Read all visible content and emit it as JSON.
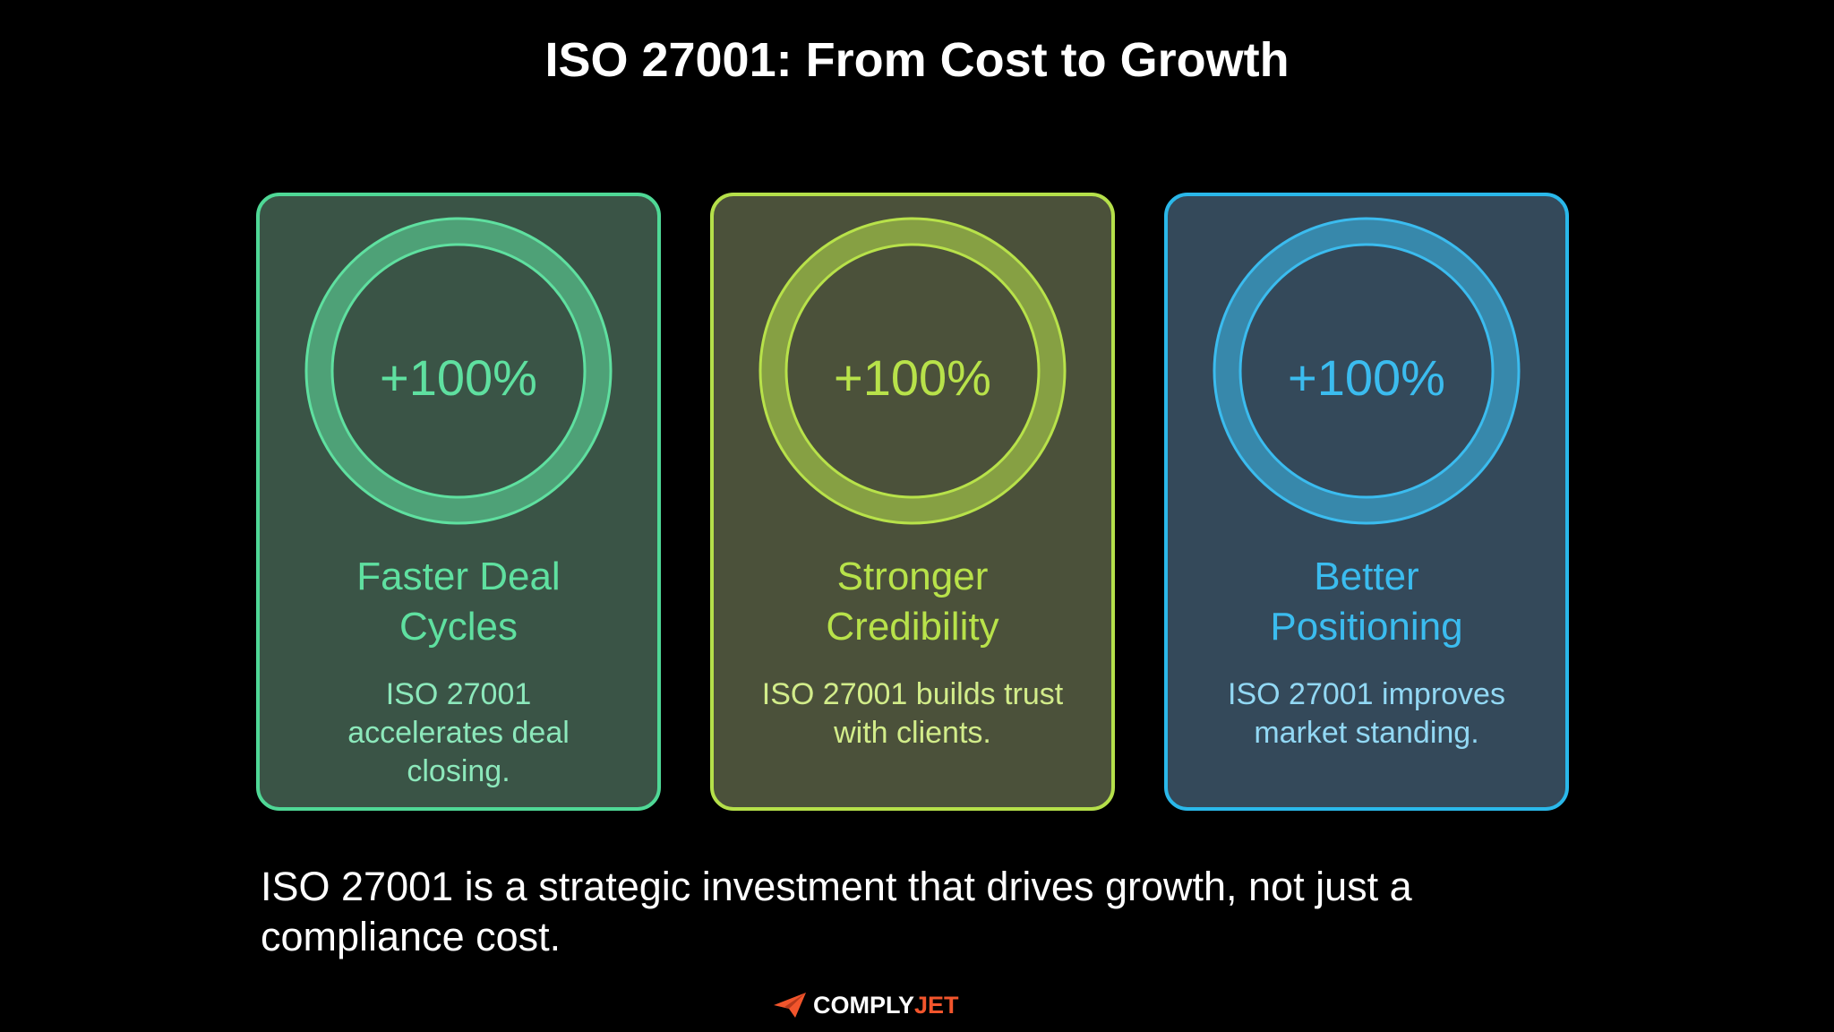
{
  "header": {
    "title": "ISO 27001: From Cost to Growth"
  },
  "cards": [
    {
      "value": "+100%",
      "heading": "Faster Deal Cycles",
      "text": "ISO 27001 accelerates deal closing."
    },
    {
      "value": "+100%",
      "heading": "Stronger Credibility",
      "text": "ISO 27001 builds trust with clients."
    },
    {
      "value": "+100%",
      "heading": "Better Positioning",
      "text": "ISO 27001 improves market standing."
    }
  ],
  "footer": {
    "text": "ISO 27001 is a strategic investment that drives growth, not just a compliance cost."
  },
  "logo": {
    "part1": "COMPLY",
    "part2": "JET"
  }
}
